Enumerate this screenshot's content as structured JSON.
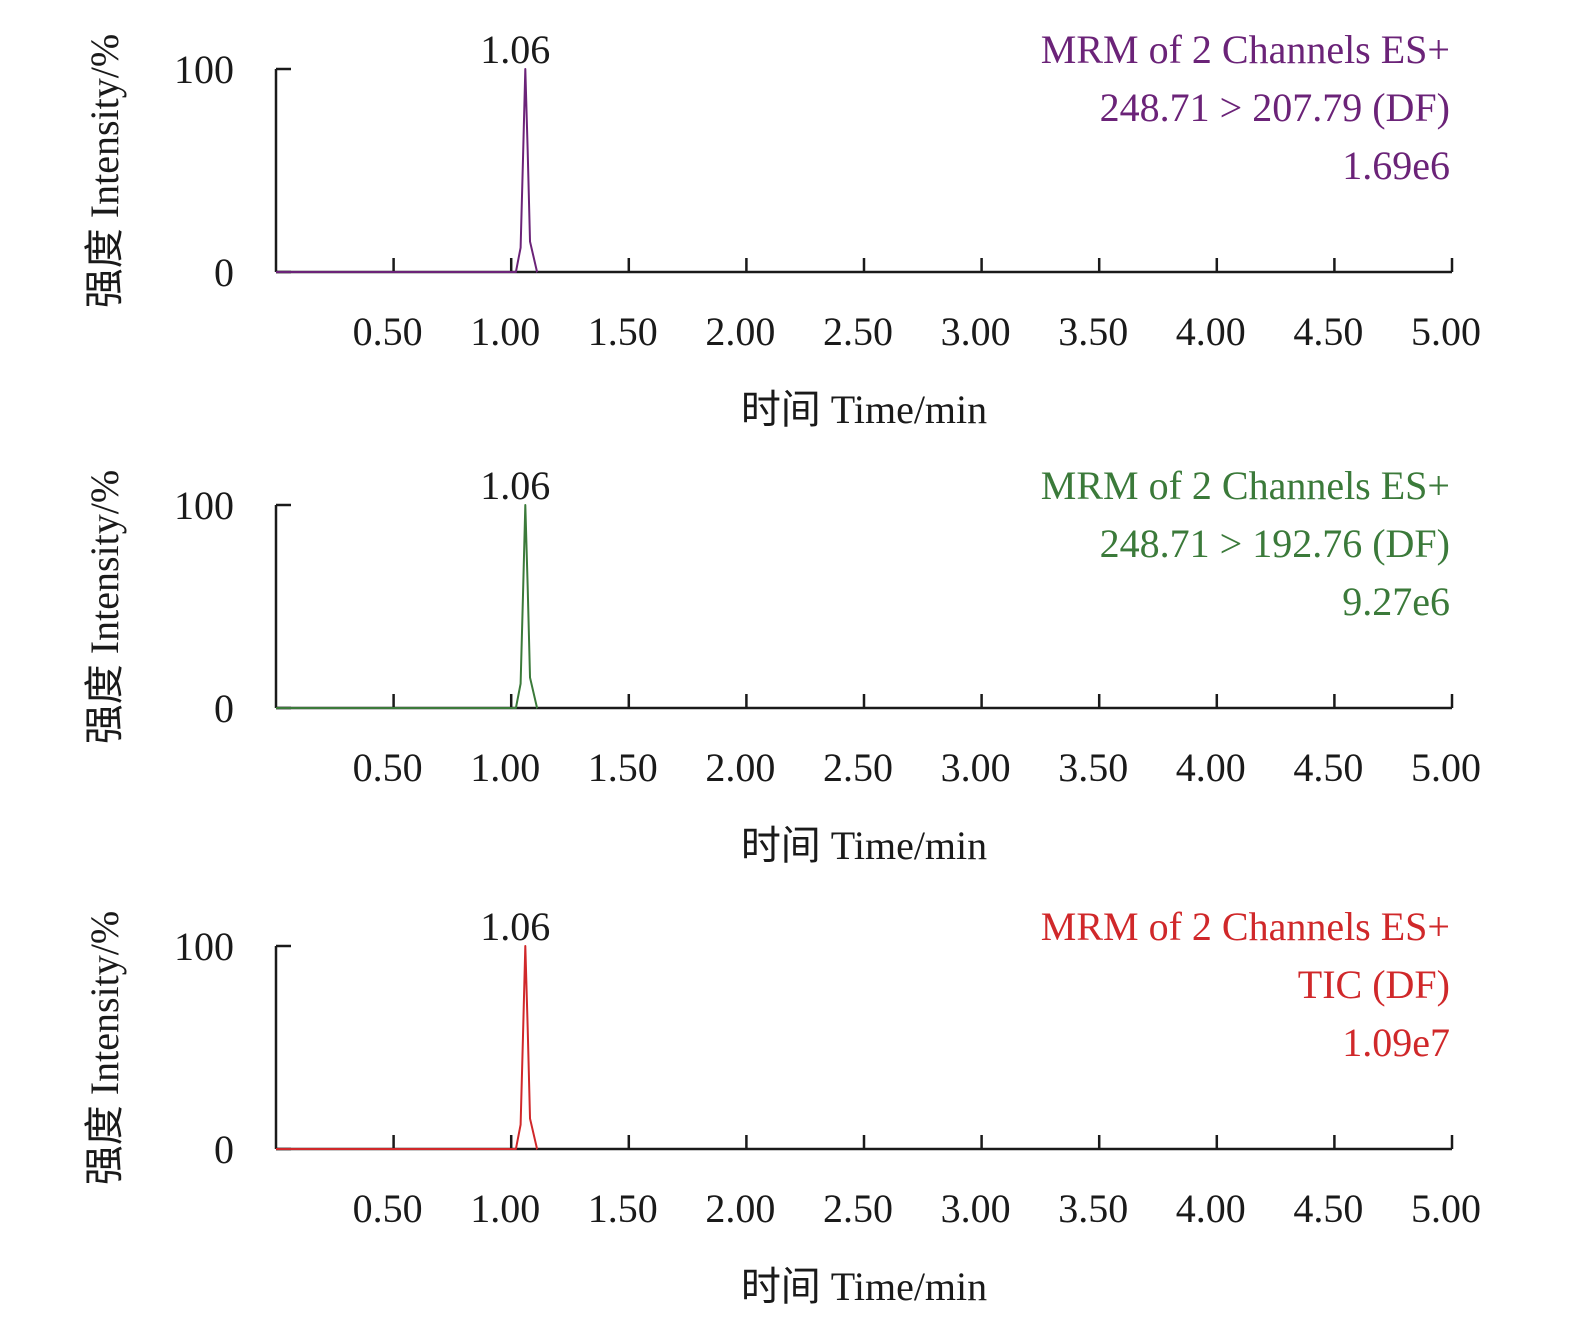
{
  "colors": {
    "axis": "#1a1a1a",
    "text": "#1a1a1a",
    "panel_1": "#6b2378",
    "panel_2": "#3b7a3a",
    "panel_3": "#d0282a"
  },
  "chart_data": [
    {
      "type": "line",
      "xlabel": "时间 Time/min",
      "ylabel": "强度 Intensity/%",
      "xlim": [
        0,
        5.0
      ],
      "ylim": [
        0,
        100
      ],
      "x_ticks": [
        "0.50",
        "1.00",
        "1.50",
        "2.00",
        "2.50",
        "3.00",
        "3.50",
        "4.00",
        "4.50",
        "5.00"
      ],
      "y_ticks": [
        "0",
        "100"
      ],
      "legend": [
        "MRM of 2 Channels ES+",
        "248.71 > 207.79 (DF)",
        "1.69e6"
      ],
      "legend_position": "top-right",
      "annotations": [
        {
          "x": 1.06,
          "text": "1.06"
        }
      ],
      "series": [
        {
          "color": "#6b2378",
          "x": [
            1.02,
            1.04,
            1.05,
            1.06,
            1.07,
            1.08,
            1.11
          ],
          "y": [
            0,
            12,
            55,
            100,
            60,
            15,
            0
          ]
        }
      ]
    },
    {
      "type": "line",
      "xlabel": "时间 Time/min",
      "ylabel": "强度 Intensity/%",
      "xlim": [
        0,
        5.0
      ],
      "ylim": [
        0,
        100
      ],
      "x_ticks": [
        "0.50",
        "1.00",
        "1.50",
        "2.00",
        "2.50",
        "3.00",
        "3.50",
        "4.00",
        "4.50",
        "5.00"
      ],
      "y_ticks": [
        "0",
        "100"
      ],
      "legend": [
        "MRM of 2 Channels ES+",
        "248.71 > 192.76 (DF)",
        "9.27e6"
      ],
      "legend_position": "top-right",
      "annotations": [
        {
          "x": 1.06,
          "text": "1.06"
        }
      ],
      "series": [
        {
          "color": "#3b7a3a",
          "x": [
            1.02,
            1.04,
            1.05,
            1.06,
            1.07,
            1.08,
            1.11
          ],
          "y": [
            0,
            12,
            55,
            100,
            60,
            15,
            0
          ]
        }
      ]
    },
    {
      "type": "line",
      "xlabel": "时间 Time/min",
      "ylabel": "强度 Intensity/%",
      "xlim": [
        0,
        5.0
      ],
      "ylim": [
        0,
        100
      ],
      "x_ticks": [
        "0.50",
        "1.00",
        "1.50",
        "2.00",
        "2.50",
        "3.00",
        "3.50",
        "4.00",
        "4.50",
        "5.00"
      ],
      "y_ticks": [
        "0",
        "100"
      ],
      "legend": [
        "MRM of 2 Channels ES+",
        "TIC (DF)",
        "1.09e7"
      ],
      "legend_position": "top-right",
      "annotations": [
        {
          "x": 1.06,
          "text": "1.06"
        }
      ],
      "series": [
        {
          "color": "#d0282a",
          "x": [
            1.02,
            1.04,
            1.05,
            1.06,
            1.07,
            1.08,
            1.11
          ],
          "y": [
            0,
            12,
            55,
            100,
            60,
            15,
            0
          ]
        }
      ]
    }
  ]
}
